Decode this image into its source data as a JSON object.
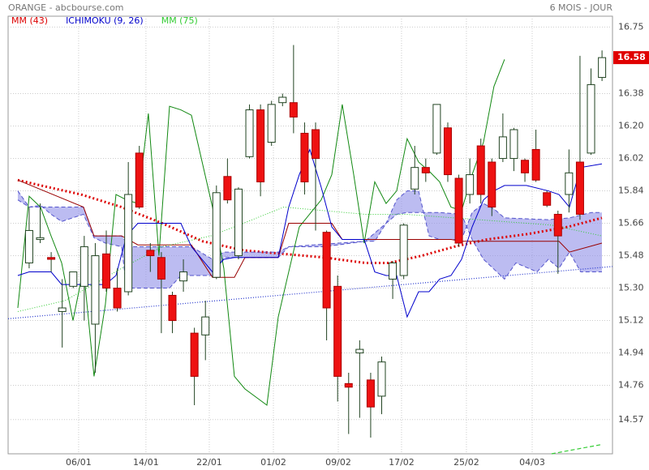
{
  "chart_data": {
    "type": "candlestick",
    "title": "ORANGE - abcbourse.com",
    "period": "6 MOIS - JOUR",
    "last_price": 16.58,
    "ylim": [
      14.38,
      16.81
    ],
    "yticks": [
      16.75,
      16.38,
      {
        "value": 16.2,
        "label": "16.20"
      },
      16.02,
      15.84,
      15.66,
      15.48,
      {
        "value": 15.3,
        "label": "15.30"
      },
      15.12,
      14.94,
      14.76,
      14.57
    ],
    "xlim": [
      -1.91,
      52.95
    ],
    "xticks": [
      {
        "value": 4.49,
        "label": "06/01"
      },
      {
        "value": 10.6,
        "label": "14/01"
      },
      {
        "value": 16.35,
        "label": "22/01"
      },
      {
        "value": 22.17,
        "label": "01/02"
      },
      {
        "value": 28.06,
        "label": "09/02"
      },
      {
        "value": 33.8,
        "label": "17/02"
      },
      {
        "value": 39.69,
        "label": "25/02"
      },
      {
        "value": 45.66,
        "label": "04/03"
      }
    ],
    "grid": true,
    "up_color": "#ffffff",
    "down_color": "#ee1111",
    "outline_color": "#224422",
    "open": [
      15.44,
      15.57,
      15.47,
      15.17,
      15.31,
      15.31,
      15.1,
      15.49,
      15.3,
      15.28,
      16.05,
      15.51,
      15.47,
      15.26,
      15.34,
      15.05,
      15.04,
      15.36,
      15.92,
      15.48,
      16.03,
      16.29,
      16.11,
      16.33,
      16.33,
      16.16,
      16.18,
      15.61,
      15.31,
      14.77,
      14.94,
      14.79,
      14.7,
      15.35,
      15.37,
      15.85,
      15.97,
      16.05,
      16.19,
      15.91,
      15.82,
      16.09,
      16.0,
      16.02,
      16.02,
      16.01,
      16.07,
      15.83,
      15.71,
      15.82,
      16.0,
      16.05,
      16.47
    ],
    "high": [
      15.75,
      15.77,
      15.5,
      15.35,
      15.39,
      15.59,
      15.55,
      15.62,
      15.41,
      16.0,
      16.09,
      15.55,
      15.5,
      15.28,
      15.46,
      15.08,
      15.23,
      15.87,
      16.02,
      15.86,
      16.32,
      16.32,
      16.34,
      16.38,
      16.65,
      16.22,
      16.22,
      15.62,
      15.37,
      14.83,
      15.01,
      14.83,
      14.92,
      15.45,
      15.66,
      16.09,
      16.02,
      16.32,
      16.22,
      15.93,
      16.02,
      16.13,
      16.02,
      16.27,
      16.19,
      16.02,
      16.18,
      15.84,
      15.73,
      16.07,
      16.59,
      16.52,
      16.62
    ],
    "low": [
      15.41,
      15.55,
      15.39,
      14.97,
      15.3,
      15.12,
      14.83,
      15.28,
      15.17,
      15.26,
      15.74,
      15.39,
      15.05,
      15.05,
      15.28,
      14.65,
      14.9,
      15.35,
      15.77,
      15.46,
      16.02,
      15.81,
      16.09,
      16.31,
      16.16,
      15.82,
      15.62,
      15.01,
      14.67,
      14.49,
      14.58,
      14.47,
      14.6,
      15.24,
      15.35,
      15.82,
      15.89,
      16.04,
      15.89,
      15.53,
      15.77,
      15.77,
      15.7,
      16.0,
      15.95,
      15.89,
      15.89,
      15.75,
      15.38,
      15.72,
      15.68,
      16.04,
      16.45
    ],
    "close": [
      15.62,
      15.58,
      15.46,
      15.19,
      15.39,
      15.53,
      15.48,
      15.3,
      15.19,
      15.82,
      15.75,
      15.48,
      15.35,
      15.12,
      15.39,
      14.81,
      15.14,
      15.83,
      15.79,
      15.85,
      16.29,
      15.89,
      16.32,
      16.36,
      16.25,
      15.89,
      16.02,
      15.19,
      14.81,
      14.75,
      14.96,
      14.64,
      14.89,
      15.44,
      15.65,
      15.97,
      15.94,
      16.32,
      15.93,
      15.55,
      15.93,
      15.82,
      15.75,
      16.14,
      16.18,
      15.94,
      15.9,
      15.76,
      15.59,
      15.94,
      15.71,
      16.43,
      16.58
    ],
    "series": [
      {
        "name": "MM (43)",
        "color": "#dd0000",
        "style": "dotted-thick",
        "x": [
          -1.03,
          1.77,
          4.71,
          8.39,
          12.08,
          15.76,
          19.44,
          23.12,
          26.8,
          30.49,
          32.69,
          35.64,
          38.59,
          41.53,
          45.21,
          48.9,
          51.99
        ],
        "values": [
          15.9,
          15.86,
          15.82,
          15.75,
          15.66,
          15.56,
          15.51,
          15.49,
          15.47,
          15.44,
          15.44,
          15.48,
          15.53,
          15.57,
          15.6,
          15.64,
          15.69
        ]
      },
      {
        "name": "ICHIMOKU (9, 26)",
        "color": "#0000cc",
        "tenkan": {
          "color": "#0000cc",
          "x": [
            -1.03,
            0,
            1.99,
            2.95,
            4.93,
            6.92,
            7.88,
            8.84,
            9.87,
            13.77,
            14.73,
            16.64,
            17.67,
            18.63,
            20.62,
            22.61,
            23.56,
            24.52,
            25.48,
            26.51,
            27.47,
            28.42,
            30.41,
            31.37,
            32.4,
            33.36,
            34.31,
            35.35,
            36.3,
            37.26,
            38.29,
            39.25,
            40.21,
            41.24,
            42.19,
            43.15,
            45.14,
            47.13,
            48.09,
            49.04,
            50.07,
            51.99
          ],
          "values": [
            15.37,
            15.39,
            15.39,
            15.32,
            15.32,
            15.32,
            15.37,
            15.59,
            15.66,
            15.66,
            15.53,
            15.39,
            15.46,
            15.47,
            15.47,
            15.47,
            15.75,
            15.93,
            16.07,
            15.86,
            15.64,
            15.57,
            15.57,
            15.39,
            15.37,
            15.37,
            15.14,
            15.28,
            15.28,
            15.35,
            15.37,
            15.46,
            15.64,
            15.79,
            15.84,
            15.87,
            15.87,
            15.84,
            15.82,
            15.75,
            15.97,
            15.99
          ]
        },
        "kijun": {
          "color": "#990000",
          "x": [
            -1.03,
            4.93,
            5.89,
            8.39,
            9.87,
            14.73,
            16.64,
            18.63,
            19.59,
            22.61,
            23.56,
            27.47,
            28.42,
            38.29,
            39.25,
            48.09,
            49.04,
            51.99
          ],
          "values": [
            15.9,
            15.75,
            15.59,
            15.59,
            15.54,
            15.54,
            15.36,
            15.36,
            15.47,
            15.47,
            15.66,
            15.66,
            15.57,
            15.57,
            15.56,
            15.56,
            15.5,
            15.55
          ]
        },
        "chikou": {
          "color": "#118811",
          "x": [
            -1.03,
            0,
            1.03,
            1.99,
            2.95,
            3.98,
            4.93,
            5.89,
            6.92,
            7.88,
            8.84,
            9.87,
            10.82,
            11.78,
            12.74,
            13.77,
            14.73,
            16.64,
            17.67,
            18.63,
            19.59,
            21.58,
            22.61,
            23.56,
            24.52,
            26.51,
            27.47,
            28.42,
            29.46,
            30.41,
            31.37,
            32.4,
            33.36,
            34.31,
            35.35,
            36.3,
            37.26,
            38.29,
            39.25,
            40.21,
            41.24,
            42.19,
            43.15
          ],
          "values": [
            15.19,
            15.81,
            15.75,
            15.59,
            15.44,
            15.12,
            15.41,
            14.81,
            15.21,
            15.82,
            15.79,
            15.77,
            16.27,
            15.48,
            16.31,
            16.29,
            16.26,
            15.75,
            15.41,
            14.81,
            14.74,
            14.65,
            15.14,
            15.39,
            15.64,
            15.79,
            15.93,
            16.32,
            15.93,
            15.55,
            15.89,
            15.77,
            15.84,
            16.13,
            16.0,
            15.95,
            15.89,
            15.75,
            15.73,
            15.93,
            16.11,
            16.42,
            16.57
          ]
        },
        "cloud": {
          "fill": "#8f8fe8",
          "edge": "#5555cc",
          "span_a": {
            "x": [
              -1.03,
              0,
              4.93,
              5.89,
              8.39,
              9.13,
              9.87,
              14.73,
              16.64,
              17.67,
              22.61,
              23.56,
              26.8,
              30.49,
              32.4,
              33.36,
              34.31,
              35.35,
              36.3,
              37.26,
              39.25,
              40.21,
              41.24,
              42.19,
              43.15,
              47.13,
              49.04,
              51.03,
              51.99
            ],
            "values": [
              15.84,
              15.75,
              15.75,
              15.59,
              15.59,
              15.53,
              15.53,
              15.53,
              15.46,
              15.5,
              15.5,
              15.53,
              15.53,
              15.56,
              15.66,
              15.79,
              15.84,
              15.84,
              15.59,
              15.57,
              15.57,
              15.72,
              15.77,
              15.74,
              15.69,
              15.68,
              15.69,
              15.72,
              15.72
            ]
          },
          "span_b": {
            "x": [
              -1.03,
              0,
              1.03,
              1.99,
              2.95,
              4.93,
              5.89,
              6.92,
              8.39,
              8.84,
              12.74,
              13.77,
              16.64,
              17.67,
              22.61,
              23.56,
              30.41,
              31.37,
              32.4,
              33.36,
              34.31,
              37.26,
              39.25,
              40.21,
              41.24,
              43.15,
              44.18,
              46.1,
              47.13,
              48.09,
              49.04,
              50.07,
              51.99
            ],
            "values": [
              15.79,
              15.75,
              15.76,
              15.71,
              15.67,
              15.71,
              15.58,
              15.55,
              15.53,
              15.3,
              15.3,
              15.37,
              15.37,
              15.47,
              15.47,
              15.53,
              15.56,
              15.56,
              15.66,
              15.71,
              15.72,
              15.72,
              15.71,
              15.57,
              15.46,
              15.35,
              15.44,
              15.39,
              15.46,
              15.41,
              15.5,
              15.39,
              15.39
            ]
          }
        }
      },
      {
        "name": "MM (75)",
        "color": "#33cc33",
        "style": "dotted",
        "x": [
          -1.03,
          3.24,
          8.39,
          12.08,
          16.49,
          19.44,
          23.12,
          26.8,
          30.49,
          34.17,
          38.59,
          43.0,
          47.42,
          51.99
        ],
        "values": [
          15.17,
          15.23,
          15.41,
          15.53,
          15.59,
          15.66,
          15.75,
          15.73,
          15.71,
          15.71,
          15.69,
          15.67,
          15.65,
          15.59
        ]
      }
    ],
    "trendlines": [
      {
        "color": "#2233cc",
        "style": "dotted",
        "x": [
          -1.91,
          52.95
        ],
        "values": [
          15.13,
          15.42
        ]
      },
      {
        "color": "#33cc33",
        "style": "dashed",
        "x": [
          47.42,
          51.84
        ],
        "values": [
          14.38,
          14.43
        ]
      }
    ]
  }
}
